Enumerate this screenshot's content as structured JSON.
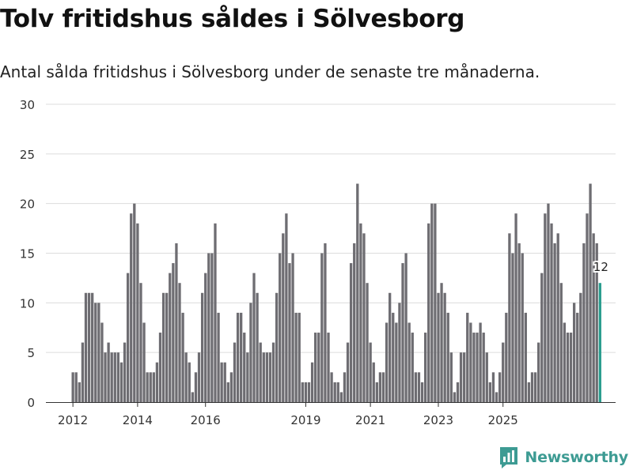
{
  "header": {
    "title": "Tolv fritidshus såldes i Sölvesborg",
    "subtitle": "Antal sålda fritidshus i Sölvesborg under de senaste tre månaderna."
  },
  "brand": {
    "name": "Newsworthy",
    "icon": "newsworthy-logo-icon",
    "color": "#3d9b93"
  },
  "chart_data": {
    "type": "bar",
    "title": "Tolv fritidshus såldes i Sölvesborg",
    "subtitle": "Antal sålda fritidshus i Sölvesborg under de senaste tre månaderna.",
    "xlabel": "",
    "ylabel": "",
    "ylim": [
      0,
      30
    ],
    "y_ticks": [
      0,
      5,
      10,
      15,
      20,
      25,
      30
    ],
    "x_tick_labels": [
      {
        "label": "2012",
        "index": 0
      },
      {
        "label": "2014",
        "index": 20
      },
      {
        "label": "2016",
        "index": 41
      },
      {
        "label": "2019",
        "index": 72
      },
      {
        "label": "2021",
        "index": 92
      },
      {
        "label": "2023",
        "index": 113
      },
      {
        "label": "2025",
        "index": 133
      }
    ],
    "grid": true,
    "bar_color": "#6e6d72",
    "highlight_color": "#2a9d8f",
    "highlight_label": "12",
    "values": [
      3,
      3,
      2,
      6,
      11,
      11,
      11,
      10,
      10,
      8,
      5,
      6,
      5,
      5,
      5,
      4,
      6,
      13,
      19,
      20,
      18,
      12,
      8,
      3,
      3,
      3,
      4,
      7,
      11,
      11,
      13,
      14,
      16,
      12,
      9,
      5,
      4,
      1,
      3,
      5,
      11,
      13,
      15,
      15,
      18,
      9,
      4,
      4,
      2,
      3,
      6,
      9,
      9,
      7,
      5,
      10,
      13,
      11,
      6,
      5,
      5,
      5,
      6,
      11,
      15,
      17,
      19,
      14,
      15,
      9,
      9,
      2,
      2,
      2,
      4,
      7,
      7,
      15,
      16,
      7,
      3,
      2,
      2,
      1,
      3,
      6,
      14,
      16,
      22,
      18,
      17,
      12,
      6,
      4,
      2,
      3,
      3,
      8,
      11,
      9,
      8,
      10,
      14,
      15,
      8,
      7,
      3,
      3,
      2,
      7,
      18,
      20,
      20,
      11,
      12,
      11,
      9,
      5,
      1,
      2,
      5,
      5,
      9,
      8,
      7,
      7,
      8,
      7,
      5,
      2,
      3,
      1,
      3,
      6,
      9,
      17,
      15,
      19,
      16,
      15,
      9,
      2,
      3,
      3,
      6,
      13,
      19,
      20,
      18,
      16,
      17,
      12,
      8,
      7,
      7,
      10,
      9,
      11,
      16,
      19,
      22,
      17,
      16,
      12
    ]
  }
}
